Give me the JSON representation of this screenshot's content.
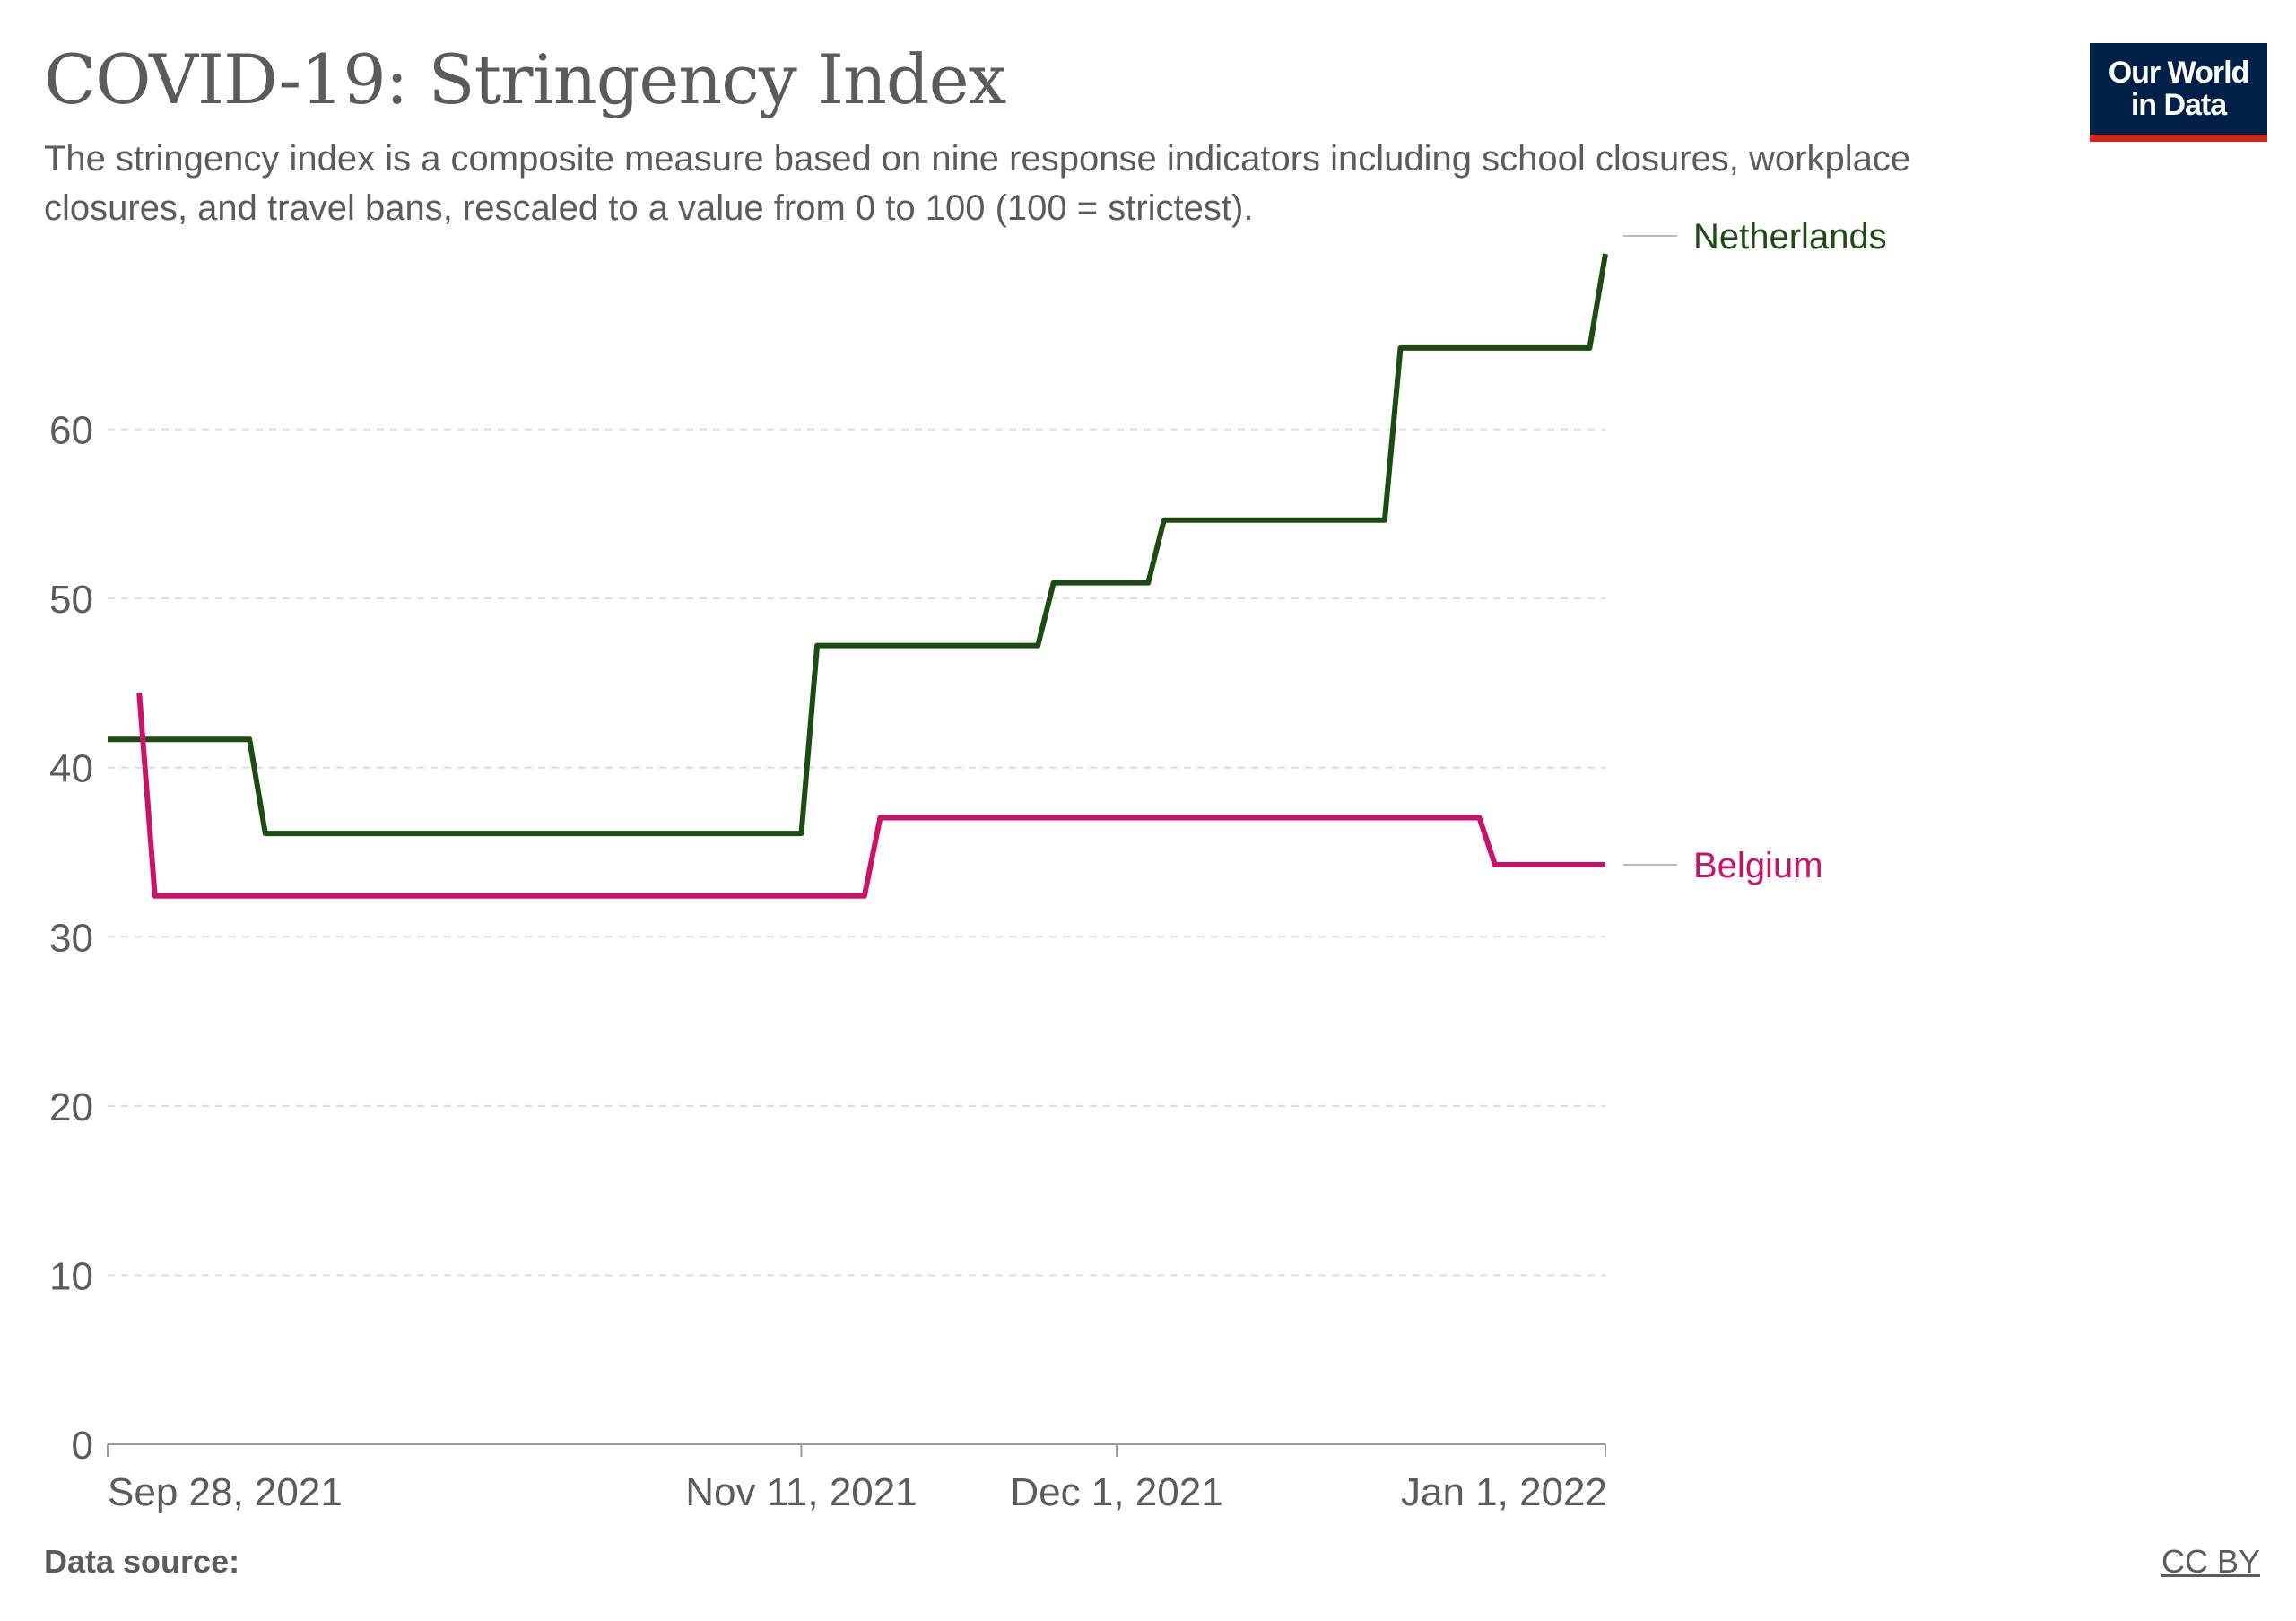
{
  "header": {
    "title": "COVID-19: Stringency Index",
    "subtitle": "The stringency index is a composite measure based on nine response indicators including school closures, workplace closures, and travel bans, rescaled to a value from 0 to 100 (100 = strictest)."
  },
  "logo": {
    "line1": "Our World",
    "line2": "in Data"
  },
  "footer": {
    "source_label": "Data source:",
    "license": "CC BY"
  },
  "colors": {
    "netherlands": "#1e4a14",
    "belgium": "#c8136b",
    "grid": "#dddddd",
    "axis": "#999999",
    "text": "#5b5b5b"
  },
  "chart_data": {
    "type": "line",
    "title": "COVID-19: Stringency Index",
    "xlabel": "",
    "ylabel": "",
    "x_ticks": [
      "Sep 28, 2021",
      "Nov 11, 2021",
      "Dec 1, 2021",
      "Jan 1, 2022"
    ],
    "y_ticks": [
      0,
      10,
      20,
      30,
      40,
      50,
      60
    ],
    "ylim": [
      0,
      70
    ],
    "xlim": [
      "2021-09-28",
      "2022-01-01"
    ],
    "grid": true,
    "legend": "inline-right",
    "series": [
      {
        "name": "Netherlands",
        "color": "#1e4a14",
        "points": [
          [
            "2021-09-28",
            41.67
          ],
          [
            "2021-10-07",
            41.67
          ],
          [
            "2021-10-08",
            36.11
          ],
          [
            "2021-11-11",
            36.11
          ],
          [
            "2021-11-12",
            47.22
          ],
          [
            "2021-11-26",
            47.22
          ],
          [
            "2021-11-27",
            50.93
          ],
          [
            "2021-12-03",
            50.93
          ],
          [
            "2021-12-04",
            54.63
          ],
          [
            "2021-12-18",
            54.63
          ],
          [
            "2021-12-19",
            64.81
          ],
          [
            "2021-12-31",
            64.81
          ],
          [
            "2022-01-01",
            70.37
          ]
        ]
      },
      {
        "name": "Belgium",
        "color": "#c8136b",
        "points": [
          [
            "2021-09-30",
            44.44
          ],
          [
            "2021-10-01",
            32.41
          ],
          [
            "2021-11-15",
            32.41
          ],
          [
            "2021-11-16",
            37.04
          ],
          [
            "2021-12-24",
            37.04
          ],
          [
            "2021-12-25",
            34.26
          ],
          [
            "2022-01-01",
            34.26
          ]
        ]
      }
    ]
  }
}
